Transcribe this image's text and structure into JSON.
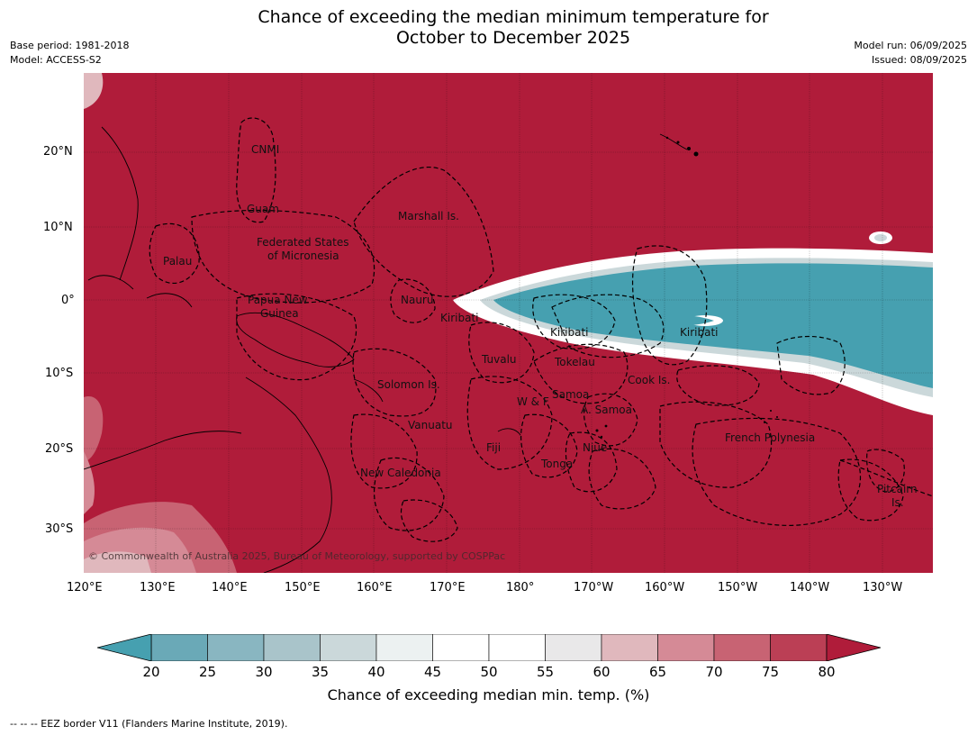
{
  "title_line1": "Chance of exceeding the median minimum temperature for",
  "title_line2": "October to December 2025",
  "meta_left": {
    "base_period": "Base period: 1981-2018",
    "model": "Model: ACCESS-S2"
  },
  "meta_right": {
    "model_run": "Model run: 06/09/2025",
    "issued": "Issued: 08/09/2025"
  },
  "copyright": "© Commonwealth of Australia 2025, Bureau of Meteorology, supported by COSPPac",
  "lat_labels": [
    "20°N",
    "10°N",
    "0°",
    "10°S",
    "20°S",
    "30°S"
  ],
  "lon_labels": [
    "120°E",
    "130°E",
    "140°E",
    "150°E",
    "160°E",
    "170°E",
    "180°",
    "170°W",
    "160°W",
    "150°W",
    "140°W",
    "130°W"
  ],
  "places": {
    "cnmi": "CNMI",
    "guam": "Guam",
    "marshall": "Marshall Is.",
    "fsm_1": "Federated States",
    "fsm_2": "of Micronesia",
    "palau": "Palau",
    "png_1": "Papua New",
    "png_2": "Guinea",
    "nauru": "Nauru",
    "kiribati_w": "Kiribati",
    "kiribati_c": "Kiribati",
    "kiribati_e": "Kiribati",
    "tuvalu": "Tuvalu",
    "tokelau": "Tokelau",
    "cook": "Cook Is.",
    "solomon": "Solomon Is.",
    "samoa": "Samoa",
    "wf": "W & F",
    "asamoa": "A. Samoa",
    "vanuatu": "Vanuatu",
    "fiji": "Fiji",
    "niue": "Niue",
    "tonga": "Tonga",
    "newcal": "New Caledonia",
    "frpoly": "French Polynesia",
    "pitcairn_1": "Pitcairn",
    "pitcairn_2": "Is."
  },
  "colorbar": {
    "ticks": [
      "20",
      "25",
      "30",
      "35",
      "40",
      "45",
      "50",
      "55",
      "60",
      "65",
      "70",
      "75",
      "80"
    ],
    "colors": [
      "#6aa9b7",
      "#89b6c1",
      "#a9c4ca",
      "#cbd8da",
      "#ecf1f1",
      "#ffffff",
      "#ffffff",
      "#e9e8e9",
      "#e0b8bd",
      "#d58a96",
      "#c86373",
      "#bb3f55"
    ],
    "under_color": "#46a0b0",
    "over_color": "#b01c3a",
    "label": "Chance of exceeding median min. temp. (%)"
  },
  "footnote": "--  --  -- EEZ border V11 (Flanders Marine Institute, 2019)."
}
